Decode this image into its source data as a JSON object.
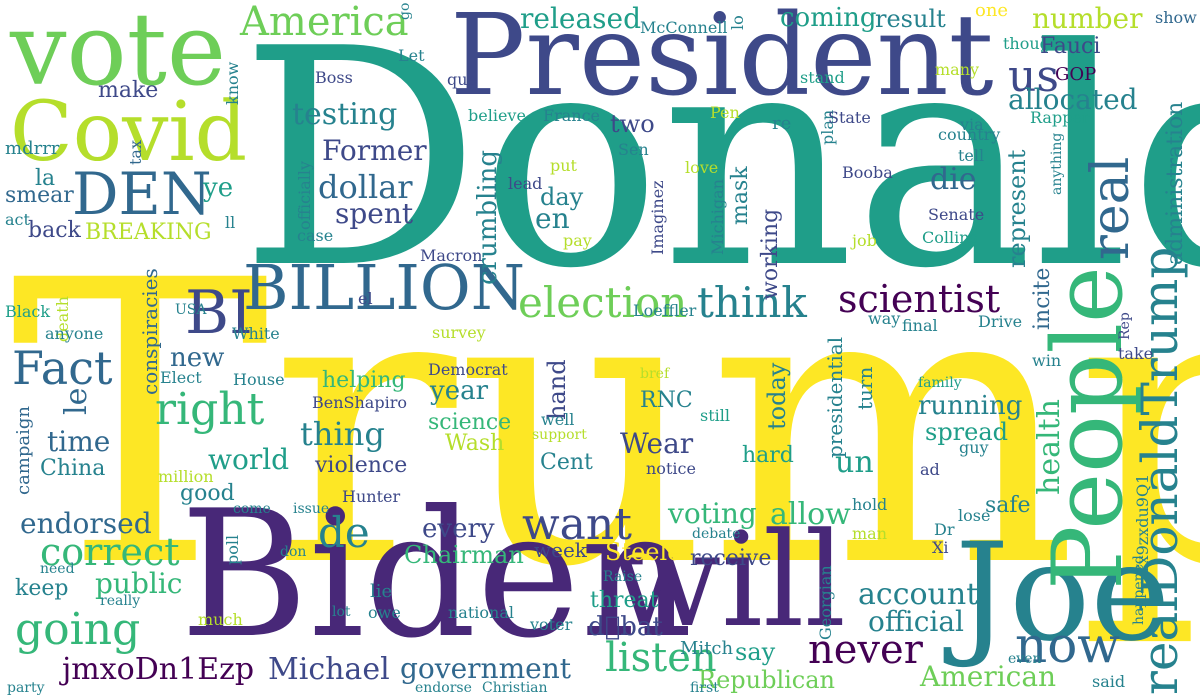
{
  "palette": {
    "background": "#ffffff",
    "yellow": "#fde725",
    "lime": "#b5de2b",
    "light_green": "#6ece58",
    "green": "#35b779",
    "teal_green": "#1f9e89",
    "teal": "#26828e",
    "blue": "#31688e",
    "indigo": "#3e4989",
    "purple": "#482878",
    "dark_purple": "#440154"
  },
  "words": [
    {
      "id": "donald",
      "text": "Donald",
      "color": "teal_green"
    },
    {
      "id": "trump",
      "text": "Trump",
      "color": "yellow"
    },
    {
      "id": "president",
      "text": "President",
      "color": "indigo"
    },
    {
      "id": "biden",
      "text": "Biden",
      "color": "purple"
    },
    {
      "id": "will",
      "text": "will",
      "color": "purple"
    },
    {
      "id": "joe",
      "text": "Joe",
      "color": "teal"
    },
    {
      "id": "vote",
      "text": "vote",
      "color": "light_green"
    },
    {
      "id": "covid",
      "text": "Covid",
      "color": "lime"
    },
    {
      "id": "people",
      "text": "People",
      "color": "green"
    },
    {
      "id": "realdonaldtrump",
      "text": "realDonaldTrump",
      "color": "teal"
    },
    {
      "id": "real",
      "text": "real",
      "color": "blue"
    },
    {
      "id": "billion",
      "text": "BILLION",
      "color": "blue"
    },
    {
      "id": "den",
      "text": "DEN",
      "color": "blue"
    },
    {
      "id": "bi",
      "text": "BI",
      "color": "indigo"
    },
    {
      "id": "america",
      "text": "America",
      "color": "light_green"
    },
    {
      "id": "us",
      "text": "us",
      "color": "indigo"
    },
    {
      "id": "allocated",
      "text": "allocated",
      "color": "teal"
    },
    {
      "id": "number",
      "text": "number",
      "color": "lime"
    },
    {
      "id": "released",
      "text": "released",
      "color": "teal_green"
    },
    {
      "id": "coming",
      "text": "coming",
      "color": "teal_green"
    },
    {
      "id": "result",
      "text": "result",
      "color": "teal"
    },
    {
      "id": "one",
      "text": "one",
      "color": "yellow"
    },
    {
      "id": "thought",
      "text": "thought",
      "color": "teal_green"
    },
    {
      "id": "show",
      "text": "show",
      "color": "blue"
    },
    {
      "id": "fauci",
      "text": "Fauci",
      "color": "indigo"
    },
    {
      "id": "gop",
      "text": "GOP",
      "color": "dark_purple"
    },
    {
      "id": "many",
      "text": "many",
      "color": "lime"
    },
    {
      "id": "testing",
      "text": "testing",
      "color": "teal"
    },
    {
      "id": "former",
      "text": "Former",
      "color": "indigo"
    },
    {
      "id": "dollar",
      "text": "dollar",
      "color": "blue"
    },
    {
      "id": "spent",
      "text": "spent",
      "color": "indigo"
    },
    {
      "id": "election",
      "text": "election",
      "color": "light_green"
    },
    {
      "id": "think",
      "text": "think",
      "color": "teal"
    },
    {
      "id": "scientist",
      "text": "scientist",
      "color": "dark_purple"
    },
    {
      "id": "die",
      "text": "die",
      "color": "blue"
    },
    {
      "id": "en",
      "text": "en",
      "color": "teal"
    },
    {
      "id": "day",
      "text": "day",
      "color": "teal"
    },
    {
      "id": "two",
      "text": "two",
      "color": "indigo"
    },
    {
      "id": "represent",
      "text": "represent",
      "color": "teal"
    },
    {
      "id": "administration",
      "text": "administration",
      "color": "teal"
    },
    {
      "id": "incite",
      "text": "incite",
      "color": "blue"
    },
    {
      "id": "fact",
      "text": "Fact",
      "color": "blue"
    },
    {
      "id": "right",
      "text": "right",
      "color": "green"
    },
    {
      "id": "new",
      "text": "new",
      "color": "blue"
    },
    {
      "id": "le",
      "text": "le",
      "color": "blue"
    },
    {
      "id": "time",
      "text": "time",
      "color": "blue"
    },
    {
      "id": "world",
      "text": "world",
      "color": "teal_green"
    },
    {
      "id": "china",
      "text": "China",
      "color": "teal"
    },
    {
      "id": "campaign",
      "text": "campaign",
      "color": "blue"
    },
    {
      "id": "good",
      "text": "good",
      "color": "teal"
    },
    {
      "id": "endorsed",
      "text": "endorsed",
      "color": "blue"
    },
    {
      "id": "correct",
      "text": "correct",
      "color": "green"
    },
    {
      "id": "going",
      "text": "going",
      "color": "green"
    },
    {
      "id": "public",
      "text": "public",
      "color": "green"
    },
    {
      "id": "keep",
      "text": "keep",
      "color": "teal"
    },
    {
      "id": "jmxodn1ezp",
      "text": "jmxoDn1Ezp",
      "color": "dark_purple"
    },
    {
      "id": "michael",
      "text": "Michael",
      "color": "indigo"
    },
    {
      "id": "government",
      "text": "government",
      "color": "blue"
    },
    {
      "id": "listen",
      "text": "listen",
      "color": "green"
    },
    {
      "id": "american",
      "text": "American",
      "color": "light_green"
    },
    {
      "id": "never",
      "text": "never",
      "color": "dark_purple"
    },
    {
      "id": "now",
      "text": "now",
      "color": "blue"
    },
    {
      "id": "want",
      "text": "want",
      "color": "indigo"
    },
    {
      "id": "de",
      "text": "de",
      "color": "teal"
    },
    {
      "id": "every",
      "text": "every",
      "color": "indigo"
    },
    {
      "id": "chairman",
      "text": "Chairman",
      "color": "green"
    },
    {
      "id": "week",
      "text": "week",
      "color": "indigo"
    },
    {
      "id": "steele",
      "text": "Steele",
      "color": "yellow"
    },
    {
      "id": "receive",
      "text": "receive",
      "color": "indigo"
    },
    {
      "id": "voting",
      "text": "voting",
      "color": "green"
    },
    {
      "id": "allow",
      "text": "allow",
      "color": "green"
    },
    {
      "id": "account",
      "text": "account",
      "color": "teal"
    },
    {
      "id": "official",
      "text": "official",
      "color": "teal"
    },
    {
      "id": "threat",
      "text": "threat",
      "color": "teal_green"
    },
    {
      "id": "debat",
      "text": "d\u0000bat",
      "color": "indigo"
    },
    {
      "id": "say",
      "text": "say",
      "color": "teal_green"
    },
    {
      "id": "republican",
      "text": "Republican",
      "color": "light_green"
    },
    {
      "id": "mitch",
      "text": "Mitch",
      "color": "teal"
    },
    {
      "id": "thing",
      "text": "thing",
      "color": "teal"
    },
    {
      "id": "violence",
      "text": "violence",
      "color": "indigo"
    },
    {
      "id": "helping",
      "text": "helping",
      "color": "green"
    },
    {
      "id": "year",
      "text": "year",
      "color": "teal"
    },
    {
      "id": "science",
      "text": "science",
      "color": "green"
    },
    {
      "id": "wash",
      "text": "Wash",
      "color": "lime"
    },
    {
      "id": "cent",
      "text": "Cent",
      "color": "teal"
    },
    {
      "id": "wear",
      "text": "Wear",
      "color": "indigo"
    },
    {
      "id": "un",
      "text": "un",
      "color": "teal_green"
    },
    {
      "id": "hard",
      "text": "hard",
      "color": "teal_green"
    },
    {
      "id": "today",
      "text": "today",
      "color": "teal"
    },
    {
      "id": "hand",
      "text": "hand",
      "color": "indigo"
    },
    {
      "id": "rnc",
      "text": "RNC",
      "color": "teal"
    },
    {
      "id": "running",
      "text": "running",
      "color": "teal"
    },
    {
      "id": "spread",
      "text": "spread",
      "color": "teal_green"
    },
    {
      "id": "turn",
      "text": "turn",
      "color": "teal"
    },
    {
      "id": "presidential",
      "text": "presidential",
      "color": "teal"
    },
    {
      "id": "health",
      "text": "health",
      "color": "green"
    },
    {
      "id": "safe",
      "text": "safe",
      "color": "teal"
    },
    {
      "id": "crumbling",
      "text": "crumbling",
      "color": "teal"
    },
    {
      "id": "working",
      "text": "working",
      "color": "indigo"
    },
    {
      "id": "mask",
      "text": "mask",
      "color": "teal"
    },
    {
      "id": "breaking",
      "text": "BREAKING",
      "color": "lime"
    },
    {
      "id": "back",
      "text": "back",
      "color": "indigo"
    },
    {
      "id": "ye",
      "text": "ye",
      "color": "teal_green"
    },
    {
      "id": "smear",
      "text": "smear",
      "color": "blue"
    },
    {
      "id": "la",
      "text": "la",
      "color": "teal"
    },
    {
      "id": "make",
      "text": "make",
      "color": "indigo"
    },
    {
      "id": "mdrrr",
      "text": "mdrrr",
      "color": "teal"
    },
    {
      "id": "act",
      "text": "act",
      "color": "teal"
    },
    {
      "id": "ll",
      "text": "ll",
      "color": "teal"
    },
    {
      "id": "know",
      "text": "know",
      "color": "teal"
    },
    {
      "id": "tax",
      "text": "tax",
      "color": "blue"
    },
    {
      "id": "boss",
      "text": "Boss",
      "color": "indigo"
    },
    {
      "id": "que",
      "text": "que",
      "color": "indigo"
    },
    {
      "id": "let",
      "text": "Let",
      "color": "teal"
    },
    {
      "id": "mcconnell",
      "text": "McConnell",
      "color": "teal"
    },
    {
      "id": "lo",
      "text": "lo",
      "color": "teal"
    },
    {
      "id": "go",
      "text": "go",
      "color": "teal"
    },
    {
      "id": "believe",
      "text": "believe",
      "color": "teal_green"
    },
    {
      "id": "france",
      "text": "France",
      "color": "teal"
    },
    {
      "id": "pen",
      "text": "Pen",
      "color": "lime"
    },
    {
      "id": "re",
      "text": "re",
      "color": "teal"
    },
    {
      "id": "sen",
      "text": "Sen",
      "color": "teal"
    },
    {
      "id": "officially",
      "text": "officially",
      "color": "teal"
    },
    {
      "id": "lead",
      "text": "lead",
      "color": "indigo"
    },
    {
      "id": "put",
      "text": "put",
      "color": "lime"
    },
    {
      "id": "love",
      "text": "love",
      "color": "lime"
    },
    {
      "id": "imaginez",
      "text": "Imaginez",
      "color": "indigo"
    },
    {
      "id": "michigan",
      "text": "Michigan",
      "color": "teal"
    },
    {
      "id": "booba",
      "text": "Booba",
      "color": "indigo"
    },
    {
      "id": "senate",
      "text": "Senate",
      "color": "indigo"
    },
    {
      "id": "collins",
      "text": "Collins",
      "color": "teal_green"
    },
    {
      "id": "case",
      "text": "case",
      "color": "teal"
    },
    {
      "id": "macron",
      "text": "Macron",
      "color": "indigo"
    },
    {
      "id": "pay",
      "text": "pay",
      "color": "lime"
    },
    {
      "id": "job",
      "text": "job",
      "color": "lime"
    },
    {
      "id": "plan",
      "text": "plan",
      "color": "teal"
    },
    {
      "id": "state",
      "text": "State",
      "color": "indigo"
    },
    {
      "id": "via",
      "text": "via",
      "color": "teal"
    },
    {
      "id": "country",
      "text": "country",
      "color": "teal"
    },
    {
      "id": "tell",
      "text": "tell",
      "color": "teal"
    },
    {
      "id": "anything",
      "text": "anything",
      "color": "teal"
    },
    {
      "id": "stand",
      "text": "stand",
      "color": "teal_green"
    },
    {
      "id": "rapper",
      "text": "Rapper",
      "color": "teal_green"
    },
    {
      "id": "usa",
      "text": "USA",
      "color": "teal"
    },
    {
      "id": "conspiracies",
      "text": "conspiracies",
      "color": "blue"
    },
    {
      "id": "black",
      "text": "Black",
      "color": "teal_green"
    },
    {
      "id": "death",
      "text": "death",
      "color": "lime"
    },
    {
      "id": "anyone",
      "text": "anyone",
      "color": "teal"
    },
    {
      "id": "white",
      "text": "White",
      "color": "teal"
    },
    {
      "id": "elect",
      "text": "Elect",
      "color": "teal"
    },
    {
      "id": "house",
      "text": "House",
      "color": "teal"
    },
    {
      "id": "benshapiro",
      "text": "BenShapiro",
      "color": "indigo"
    },
    {
      "id": "el",
      "text": "el",
      "color": "indigo"
    },
    {
      "id": "survey",
      "text": "survey",
      "color": "lime"
    },
    {
      "id": "democrat",
      "text": "Democrat",
      "color": "indigo"
    },
    {
      "id": "loeffler",
      "text": "Loeffler",
      "color": "teal"
    },
    {
      "id": "million",
      "text": "million",
      "color": "lime"
    },
    {
      "id": "hunter",
      "text": "Hunter",
      "color": "indigo"
    },
    {
      "id": "come",
      "text": "come",
      "color": "teal"
    },
    {
      "id": "issue",
      "text": "issue",
      "color": "teal"
    },
    {
      "id": "poll",
      "text": "poll",
      "color": "teal"
    },
    {
      "id": "don",
      "text": "don",
      "color": "teal"
    },
    {
      "id": "need",
      "text": "need",
      "color": "teal"
    },
    {
      "id": "really",
      "text": "really",
      "color": "teal"
    },
    {
      "id": "lie",
      "text": "lie",
      "color": "teal"
    },
    {
      "id": "owe",
      "text": "owe",
      "color": "teal"
    },
    {
      "id": "lot",
      "text": "lot",
      "color": "teal"
    },
    {
      "id": "much",
      "text": "much",
      "color": "lime"
    },
    {
      "id": "national",
      "text": "national",
      "color": "teal"
    },
    {
      "id": "voter",
      "text": "voter",
      "color": "teal"
    },
    {
      "id": "raise",
      "text": "Raise",
      "color": "teal"
    },
    {
      "id": "debate",
      "text": "debate",
      "color": "teal"
    },
    {
      "id": "notice",
      "text": "notice",
      "color": "indigo"
    },
    {
      "id": "bref",
      "text": "bref",
      "color": "lime"
    },
    {
      "id": "still",
      "text": "still",
      "color": "teal_green"
    },
    {
      "id": "support",
      "text": "support",
      "color": "lime"
    },
    {
      "id": "well",
      "text": "well",
      "color": "teal"
    },
    {
      "id": "family",
      "text": "family",
      "color": "teal_green"
    },
    {
      "id": "guy",
      "text": "guy",
      "color": "teal"
    },
    {
      "id": "ad",
      "text": "ad",
      "color": "indigo"
    },
    {
      "id": "way",
      "text": "way",
      "color": "teal"
    },
    {
      "id": "final",
      "text": "final",
      "color": "teal"
    },
    {
      "id": "drive",
      "text": "Drive",
      "color": "teal"
    },
    {
      "id": "rep",
      "text": "Rep",
      "color": "indigo"
    },
    {
      "id": "win",
      "text": "win",
      "color": "teal"
    },
    {
      "id": "take",
      "text": "take",
      "color": "indigo"
    },
    {
      "id": "hold",
      "text": "hold",
      "color": "teal"
    },
    {
      "id": "lose",
      "text": "lose",
      "color": "teal"
    },
    {
      "id": "man",
      "text": "man",
      "color": "lime"
    },
    {
      "id": "dr",
      "text": "Dr",
      "color": "teal"
    },
    {
      "id": "xi",
      "text": "Xi",
      "color": "indigo"
    },
    {
      "id": "yx9zxdu9q1",
      "text": "Yx9zxdu9Q1",
      "color": "teal"
    },
    {
      "id": "happened",
      "text": "happened",
      "color": "teal"
    },
    {
      "id": "georgian",
      "text": "Georgian",
      "color": "teal"
    },
    {
      "id": "even",
      "text": "even",
      "color": "teal"
    },
    {
      "id": "said",
      "text": "said",
      "color": "teal"
    },
    {
      "id": "first",
      "text": "first",
      "color": "teal"
    },
    {
      "id": "endorse",
      "text": "endorse",
      "color": "teal"
    },
    {
      "id": "christian",
      "text": "Christian",
      "color": "teal"
    },
    {
      "id": "party",
      "text": "party",
      "color": "teal"
    }
  ]
}
